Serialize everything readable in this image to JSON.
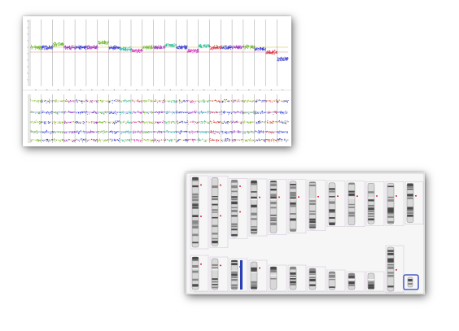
{
  "colors": {
    "green": "#78b83a",
    "blue": "#3f3fd6",
    "purple": "#a238c4",
    "magenta": "#d63fc0",
    "teal": "#2fbfa6",
    "red": "#d8344a",
    "yellow_line": "#cfc23a",
    "band_dark": "#4a4a4a",
    "band_light": "#d8d8d8",
    "highlight_box": "#2a3fb8"
  },
  "plot": {
    "segment_colors": [
      "green",
      "blue",
      "green",
      "purple",
      "blue",
      "purple",
      "green",
      "blue",
      "teal",
      "magenta",
      "green",
      "purple",
      "teal",
      "blue",
      "magenta",
      "teal",
      "red",
      "blue",
      "purple",
      "green",
      "blue",
      "red",
      "blue"
    ]
  },
  "karyogram": {
    "row1_count": 12,
    "row2_count": 12
  }
}
